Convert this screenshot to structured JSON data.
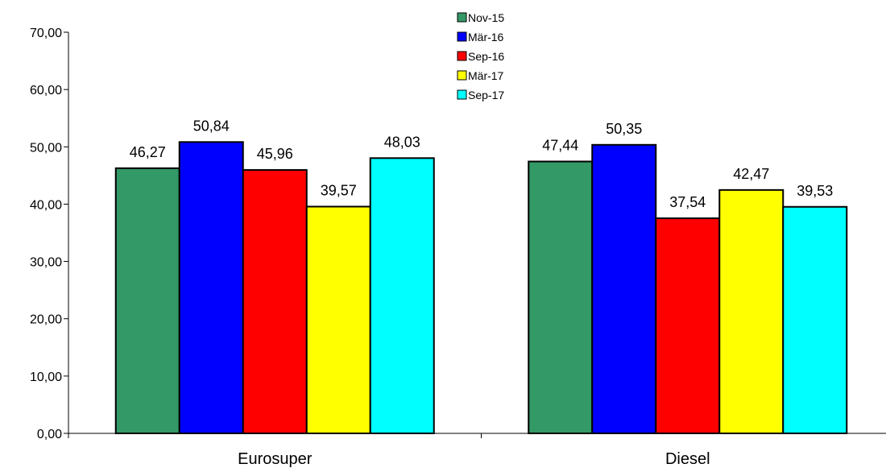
{
  "chart_data": {
    "type": "bar",
    "categories": [
      "Eurosuper",
      "Diesel"
    ],
    "series": [
      {
        "name": "Nov-15",
        "color": "#339966",
        "values": [
          46.27,
          47.44
        ],
        "labels": [
          "46,27",
          "47,44"
        ]
      },
      {
        "name": "Mär-16",
        "color": "#0000ff",
        "values": [
          50.84,
          50.35
        ],
        "labels": [
          "50,84",
          "50,35"
        ]
      },
      {
        "name": "Sep-16",
        "color": "#ff0000",
        "values": [
          45.96,
          37.54
        ],
        "labels": [
          "45,96",
          "37,54"
        ]
      },
      {
        "name": "Mär-17",
        "color": "#ffff00",
        "values": [
          39.57,
          42.47
        ],
        "labels": [
          "39,57",
          "42,47"
        ]
      },
      {
        "name": "Sep-17",
        "color": "#00ffff",
        "values": [
          48.03,
          39.53
        ],
        "labels": [
          "48,03",
          "39,53"
        ]
      }
    ],
    "ylim": [
      0,
      70
    ],
    "yticks": [
      0,
      10,
      20,
      30,
      40,
      50,
      60,
      70
    ],
    "ytick_labels": [
      "0,00",
      "10,00",
      "20,00",
      "30,00",
      "40,00",
      "50,00",
      "60,00",
      "70,00"
    ],
    "legend_position": "top-center",
    "grid": false
  }
}
